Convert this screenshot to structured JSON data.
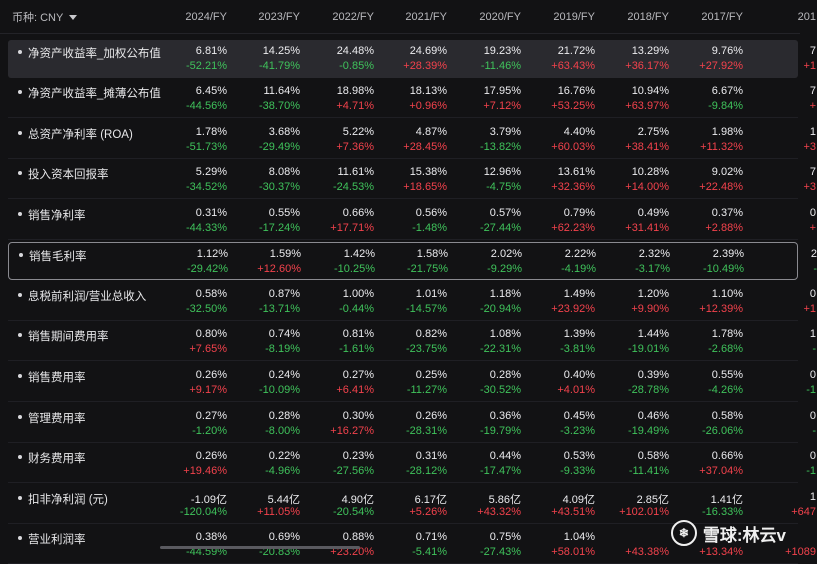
{
  "currency": {
    "label": "币种: CNY"
  },
  "columns": [
    "2024/FY",
    "2023/FY",
    "2022/FY",
    "2021/FY",
    "2020/FY",
    "2019/FY",
    "2018/FY",
    "2017/FY",
    "201"
  ],
  "rows": [
    {
      "name": "净资产收益率_加权公布值",
      "values": [
        "6.81%",
        "14.25%",
        "24.48%",
        "24.69%",
        "19.23%",
        "21.72%",
        "13.29%",
        "9.76%",
        "7"
      ],
      "changes": [
        "-52.21%",
        "-41.79%",
        "-0.85%",
        "+28.39%",
        "-11.46%",
        "+63.43%",
        "+36.17%",
        "+27.92%",
        "+1"
      ]
    },
    {
      "name": "净资产收益率_摊薄公布值",
      "values": [
        "6.45%",
        "11.64%",
        "18.98%",
        "18.13%",
        "17.95%",
        "16.76%",
        "10.94%",
        "6.67%",
        "7"
      ],
      "changes": [
        "-44.56%",
        "-38.70%",
        "+4.71%",
        "+0.96%",
        "+7.12%",
        "+53.25%",
        "+63.97%",
        "-9.84%",
        "+"
      ]
    },
    {
      "name": "总资产净利率 (ROA)",
      "values": [
        "1.78%",
        "3.68%",
        "5.22%",
        "4.87%",
        "3.79%",
        "4.40%",
        "2.75%",
        "1.98%",
        "1"
      ],
      "changes": [
        "-51.73%",
        "-29.49%",
        "+7.36%",
        "+28.45%",
        "-13.82%",
        "+60.03%",
        "+38.41%",
        "+11.32%",
        "+3"
      ]
    },
    {
      "name": "投入资本回报率",
      "values": [
        "5.29%",
        "8.08%",
        "11.61%",
        "15.38%",
        "12.96%",
        "13.61%",
        "10.28%",
        "9.02%",
        "7"
      ],
      "changes": [
        "-34.52%",
        "-30.37%",
        "-24.53%",
        "+18.65%",
        "-4.75%",
        "+32.36%",
        "+14.00%",
        "+22.48%",
        "+3"
      ]
    },
    {
      "name": "销售净利率",
      "values": [
        "0.31%",
        "0.55%",
        "0.66%",
        "0.56%",
        "0.57%",
        "0.79%",
        "0.49%",
        "0.37%",
        "0"
      ],
      "changes": [
        "-44.33%",
        "-17.24%",
        "+17.71%",
        "-1.48%",
        "-27.44%",
        "+62.23%",
        "+31.41%",
        "+2.88%",
        "+"
      ]
    },
    {
      "name": "销售毛利率",
      "values": [
        "1.12%",
        "1.59%",
        "1.42%",
        "1.58%",
        "2.02%",
        "2.22%",
        "2.32%",
        "2.39%",
        "2"
      ],
      "changes": [
        "-29.42%",
        "+12.60%",
        "-10.25%",
        "-21.75%",
        "-9.29%",
        "-4.19%",
        "-3.17%",
        "-10.49%",
        "-"
      ]
    },
    {
      "name": "息税前利润/营业总收入",
      "values": [
        "0.58%",
        "0.87%",
        "1.00%",
        "1.01%",
        "1.18%",
        "1.49%",
        "1.20%",
        "1.10%",
        "0"
      ],
      "changes": [
        "-32.50%",
        "-13.71%",
        "-0.44%",
        "-14.57%",
        "-20.94%",
        "+23.92%",
        "+9.90%",
        "+12.39%",
        "+1"
      ]
    },
    {
      "name": "销售期间费用率",
      "values": [
        "0.80%",
        "0.74%",
        "0.81%",
        "0.82%",
        "1.08%",
        "1.39%",
        "1.44%",
        "1.78%",
        "1"
      ],
      "changes": [
        "+7.65%",
        "-8.19%",
        "-1.61%",
        "-23.75%",
        "-22.31%",
        "-3.81%",
        "-19.01%",
        "-2.68%",
        "-"
      ]
    },
    {
      "name": "销售费用率",
      "values": [
        "0.26%",
        "0.24%",
        "0.27%",
        "0.25%",
        "0.28%",
        "0.40%",
        "0.39%",
        "0.55%",
        "0"
      ],
      "changes": [
        "+9.17%",
        "-10.09%",
        "+6.41%",
        "-11.27%",
        "-30.52%",
        "+4.01%",
        "-28.78%",
        "-4.26%",
        "-1"
      ]
    },
    {
      "name": "管理费用率",
      "values": [
        "0.27%",
        "0.28%",
        "0.30%",
        "0.26%",
        "0.36%",
        "0.45%",
        "0.46%",
        "0.58%",
        "0"
      ],
      "changes": [
        "-1.20%",
        "-8.00%",
        "+16.27%",
        "-28.31%",
        "-19.79%",
        "-3.23%",
        "-19.49%",
        "-26.06%",
        "-"
      ]
    },
    {
      "name": "财务费用率",
      "values": [
        "0.26%",
        "0.22%",
        "0.23%",
        "0.31%",
        "0.44%",
        "0.53%",
        "0.58%",
        "0.66%",
        "0"
      ],
      "changes": [
        "+19.46%",
        "-4.96%",
        "-27.56%",
        "-28.12%",
        "-17.47%",
        "-9.33%",
        "-11.41%",
        "+37.04%",
        "-1"
      ]
    },
    {
      "name": "扣非净利润 (元)",
      "values": [
        "-1.09亿",
        "5.44亿",
        "4.90亿",
        "6.17亿",
        "5.86亿",
        "4.09亿",
        "2.85亿",
        "1.41亿",
        "1"
      ],
      "changes": [
        "-120.04%",
        "+11.05%",
        "-20.54%",
        "+5.26%",
        "+43.32%",
        "+43.51%",
        "+102.01%",
        "-16.33%",
        "+647"
      ]
    },
    {
      "name": "营业利润率",
      "values": [
        "0.38%",
        "0.69%",
        "0.88%",
        "0.71%",
        "0.75%",
        "1.04%",
        "",
        "",
        ""
      ],
      "changes": [
        "-44.59%",
        "-20.83%",
        "+23.20%",
        "-5.41%",
        "-27.43%",
        "+58.01%",
        "+43.38%",
        "+13.34%",
        "+1089"
      ]
    }
  ],
  "watermark": {
    "logo": "❄",
    "text": "雪球:林云v"
  },
  "colors": {
    "positive": "#f2424c",
    "negative": "#3fc25b",
    "background": "#121214"
  }
}
